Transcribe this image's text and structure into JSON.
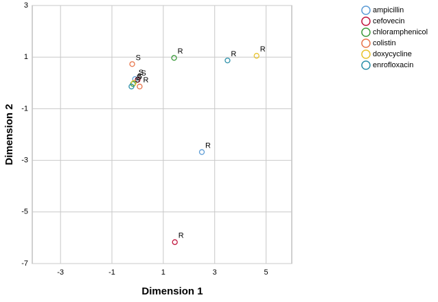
{
  "chart_data": {
    "type": "scatter",
    "xlabel": "Dimension 1",
    "ylabel": "Dimension 2",
    "xlim": [
      -4.1,
      6.0
    ],
    "ylim": [
      -7,
      3
    ],
    "xticks": [
      -3,
      -1,
      1,
      3,
      5
    ],
    "yticks": [
      3,
      1,
      -1,
      -3,
      -5,
      -7
    ],
    "grid": true,
    "legend": "right",
    "series": [
      {
        "name": "ampicillin",
        "color": "#5b9bd5",
        "x": [
          -0.1,
          2.5
        ],
        "values": [
          0.15,
          -2.68
        ],
        "point_labels": [
          "S",
          "R"
        ]
      },
      {
        "name": "cefovecin",
        "color": "#c0143c",
        "x": [
          0.0,
          1.45
        ],
        "values": [
          0.12,
          -6.17
        ],
        "point_labels": [
          "S",
          "R"
        ]
      },
      {
        "name": "chloramphenicol",
        "color": "#3a9a3a",
        "x": [
          -0.18,
          1.42
        ],
        "values": [
          -0.04,
          0.97
        ],
        "point_labels": [
          "S",
          "R"
        ]
      },
      {
        "name": "colistin",
        "color": "#e8744a",
        "x": [
          -0.21,
          0.08
        ],
        "values": [
          0.73,
          -0.14
        ],
        "point_labels": [
          "S",
          "R"
        ]
      },
      {
        "name": "doxycycline",
        "color": "#e8c22a",
        "x": [
          -0.15,
          4.63
        ],
        "values": [
          0.0,
          1.05
        ],
        "point_labels": [
          "S",
          "R"
        ]
      },
      {
        "name": "enrofloxacin",
        "color": "#2a8fa8",
        "x": [
          -0.24,
          3.5
        ],
        "values": [
          -0.14,
          0.87
        ],
        "point_labels": [
          "S",
          "R"
        ]
      }
    ]
  }
}
